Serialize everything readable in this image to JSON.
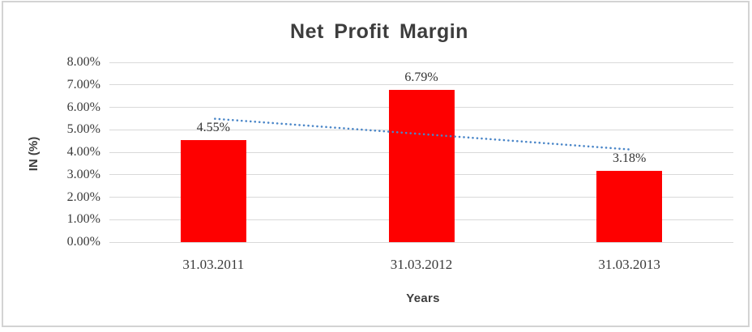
{
  "chart_data": {
    "type": "bar",
    "title": "Net Profit Margin",
    "categories": [
      "31.03.2011",
      "31.03.2012",
      "31.03.2013"
    ],
    "values": [
      4.55,
      6.79,
      3.18
    ],
    "data_labels": [
      "4.55%",
      "6.79%",
      "3.18%"
    ],
    "xlabel": "Years",
    "ylabel": "IN (%)",
    "ylim": [
      0,
      8
    ],
    "ytick_step": 1,
    "ytick_labels": [
      "0.00%",
      "1.00%",
      "2.00%",
      "3.00%",
      "4.00%",
      "5.00%",
      "6.00%",
      "7.00%",
      "8.00%"
    ],
    "grid": true,
    "legend": "none",
    "bar_color": "#fe0000",
    "gridline_color": "#d9d9d9",
    "axis_line_color": "#d9d9d9",
    "frame_border_color": "#d3d3d3",
    "title_color": "#3d3d3d",
    "tick_color": "#3a3a3a",
    "trendline": {
      "type": "linear",
      "style": "dotted",
      "color": "#4a86c8"
    }
  }
}
